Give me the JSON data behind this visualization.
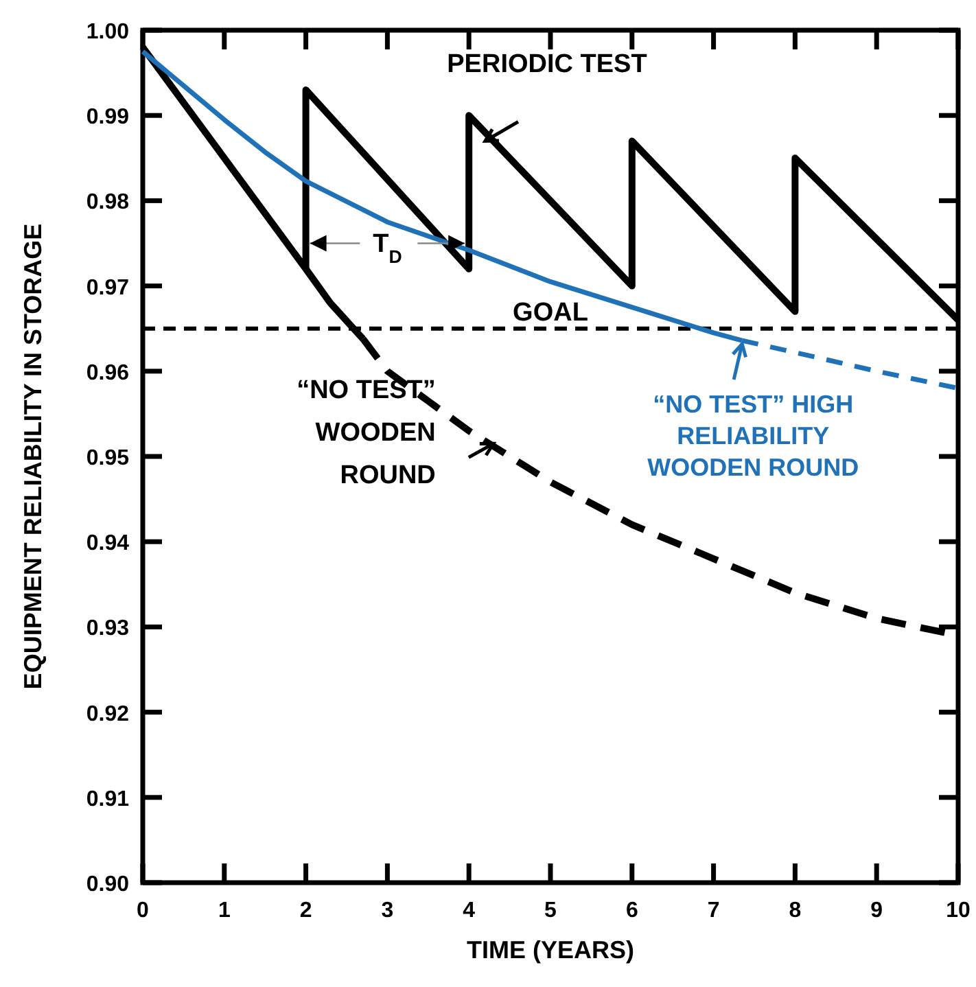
{
  "chart_data": {
    "type": "line",
    "xlabel": "TIME (YEARS)",
    "ylabel": "EQUIPMENT RELIABILITY IN STORAGE",
    "xlim": [
      0,
      10
    ],
    "ylim": [
      0.9,
      1.0
    ],
    "xticks": [
      0,
      1,
      2,
      3,
      4,
      5,
      6,
      7,
      8,
      9,
      10
    ],
    "yticks": [
      {
        "value": 0.9,
        "label": "0.90"
      },
      0.91,
      0.92,
      0.93,
      0.94,
      0.95,
      0.96,
      0.97,
      0.98,
      0.99,
      {
        "value": 1.0,
        "label": "1.00"
      }
    ],
    "series": [
      {
        "color": "#000000",
        "line_style": "solid",
        "x": [
          0,
          2,
          2,
          4,
          4,
          6,
          6,
          8,
          8,
          10
        ],
        "values": [
          0.998,
          0.972,
          0.993,
          0.972,
          0.99,
          0.97,
          0.987,
          0.967,
          0.985,
          0.966
        ]
      },
      {
        "color": "#000000",
        "line_style": "solid",
        "x": [
          2,
          2.3,
          2.7
        ],
        "values": [
          0.972,
          0.968,
          0.9638
        ]
      },
      {
        "color": "#000000",
        "line_style": "dashed",
        "x": [
          2.7,
          3,
          3.5,
          4,
          5,
          6,
          7,
          8,
          9,
          10
        ],
        "values": [
          0.9638,
          0.96,
          0.9565,
          0.953,
          0.947,
          0.942,
          0.938,
          0.934,
          0.931,
          0.929
        ]
      },
      {
        "color": "#1f72b8",
        "line_style": "solid",
        "x": [
          0,
          0.5,
          1,
          1.5,
          2,
          3,
          4,
          5,
          6,
          7,
          7.35
        ],
        "values": [
          0.9975,
          0.9935,
          0.9895,
          0.9857,
          0.9823,
          0.9775,
          0.9742,
          0.9705,
          0.9675,
          0.9645,
          0.9636
        ]
      },
      {
        "color": "#1f72b8",
        "line_style": "dashed",
        "x": [
          7.35,
          8,
          9,
          10
        ],
        "values": [
          0.9636,
          0.9622,
          0.96,
          0.958
        ]
      }
    ],
    "ref_lines": [
      {
        "axis": "y",
        "value": 0.965,
        "label": "GOAL",
        "color": "#000000",
        "line_style": "dashed"
      }
    ],
    "annotations": [
      {
        "text": "PERIODIC TEST",
        "x": 4.2,
        "y": 0.987
      },
      {
        "text": "T$_{D}$",
        "x": 2,
        "y": 0.975
      },
      {
        "text": "“NO TEST”\nWOODEN\nROUND",
        "x": 4.3,
        "y": 0.9515
      },
      {
        "text": "“NO TEST” HIGH\nRELIABILITY\nWOODEN ROUND",
        "x": 7.35,
        "y": 0.9632
      }
    ]
  }
}
